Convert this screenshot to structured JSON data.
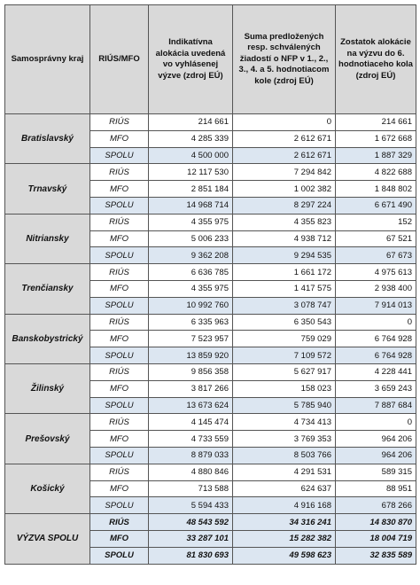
{
  "headers": [
    "Samosprávny kraj",
    "RIÚS/MFO",
    "Indikatívna alokácia uvedená vo vyhlásenej výzve (zdroj EÚ)",
    "Suma predložených resp. schválených žiadostí o NFP v 1., 2., 3., 4. a 5. hodnotiacom kole (zdroj EÚ)",
    "Zostatok alokácie na výzvu do 6. hodnotiaceho kola (zdroj EÚ)"
  ],
  "regions": [
    {
      "name": "Bratislavský",
      "rows": [
        {
          "type": "RIÚS",
          "alokacia": "214 661",
          "suma": "0",
          "zostatok": "214 661"
        },
        {
          "type": "MFO",
          "alokacia": "4 285 339",
          "suma": "2 612 671",
          "zostatok": "1 672 668"
        },
        {
          "type": "SPOLU",
          "alokacia": "4 500 000",
          "suma": "2 612 671",
          "zostatok": "1 887 329"
        }
      ]
    },
    {
      "name": "Trnavský",
      "rows": [
        {
          "type": "RIÚS",
          "alokacia": "12 117 530",
          "suma": "7 294 842",
          "zostatok": "4 822 688"
        },
        {
          "type": "MFO",
          "alokacia": "2 851 184",
          "suma": "1 002 382",
          "zostatok": "1 848 802"
        },
        {
          "type": "SPOLU",
          "alokacia": "14 968 714",
          "suma": "8 297 224",
          "zostatok": "6 671 490"
        }
      ]
    },
    {
      "name": "Nitriansky",
      "rows": [
        {
          "type": "RIÚS",
          "alokacia": "4 355 975",
          "suma": "4 355 823",
          "zostatok": "152"
        },
        {
          "type": "MFO",
          "alokacia": "5 006 233",
          "suma": "4 938 712",
          "zostatok": "67 521"
        },
        {
          "type": "SPOLU",
          "alokacia": "9 362 208",
          "suma": "9 294 535",
          "zostatok": "67 673"
        }
      ]
    },
    {
      "name": "Trenčiansky",
      "rows": [
        {
          "type": "RIÚS",
          "alokacia": "6 636 785",
          "suma": "1 661 172",
          "zostatok": "4 975 613"
        },
        {
          "type": "MFO",
          "alokacia": "4 355 975",
          "suma": "1 417 575",
          "zostatok": "2 938 400"
        },
        {
          "type": "SPOLU",
          "alokacia": "10 992 760",
          "suma": "3 078 747",
          "zostatok": "7 914 013"
        }
      ]
    },
    {
      "name": "Banskobystrický",
      "rows": [
        {
          "type": "RIÚS",
          "alokacia": "6 335 963",
          "suma": "6 350 543",
          "zostatok": "0"
        },
        {
          "type": "MFO",
          "alokacia": "7 523 957",
          "suma": "759 029",
          "zostatok": "6 764 928"
        },
        {
          "type": "SPOLU",
          "alokacia": "13 859 920",
          "suma": "7 109 572",
          "zostatok": "6 764 928"
        }
      ]
    },
    {
      "name": "Žilinský",
      "rows": [
        {
          "type": "RIÚS",
          "alokacia": "9 856 358",
          "suma": "5 627 917",
          "zostatok": "4 228 441"
        },
        {
          "type": "MFO",
          "alokacia": "3 817 266",
          "suma": "158 023",
          "zostatok": "3 659 243"
        },
        {
          "type": "SPOLU",
          "alokacia": "13 673 624",
          "suma": "5 785 940",
          "zostatok": "7 887 684"
        }
      ]
    },
    {
      "name": "Prešovský",
      "rows": [
        {
          "type": "RIÚS",
          "alokacia": "4 145 474",
          "suma": "4 734 413",
          "zostatok": "0"
        },
        {
          "type": "MFO",
          "alokacia": "4 733 559",
          "suma": "3 769 353",
          "zostatok": "964 206"
        },
        {
          "type": "SPOLU",
          "alokacia": "8 879 033",
          "suma": "8 503 766",
          "zostatok": "964 206"
        }
      ]
    },
    {
      "name": "Košický",
      "rows": [
        {
          "type": "RIÚS",
          "alokacia": "4 880 846",
          "suma": "4 291 531",
          "zostatok": "589 315"
        },
        {
          "type": "MFO",
          "alokacia": "713 588",
          "suma": "624 637",
          "zostatok": "88 951"
        },
        {
          "type": "SPOLU",
          "alokacia": "5 594 433",
          "suma": "4 916 168",
          "zostatok": "678 266"
        }
      ]
    }
  ],
  "total": {
    "name": "VÝZVA SPOLU",
    "rows": [
      {
        "type": "RIÚS",
        "alokacia": "48 543 592",
        "suma": "34 316 241",
        "zostatok": "14 830 870"
      },
      {
        "type": "MFO",
        "alokacia": "33 287 101",
        "suma": "15 282 382",
        "zostatok": "18 004 719"
      },
      {
        "type": "SPOLU",
        "alokacia": "81 830 693",
        "suma": "49 598 623",
        "zostatok": "32 835 589"
      }
    ]
  }
}
